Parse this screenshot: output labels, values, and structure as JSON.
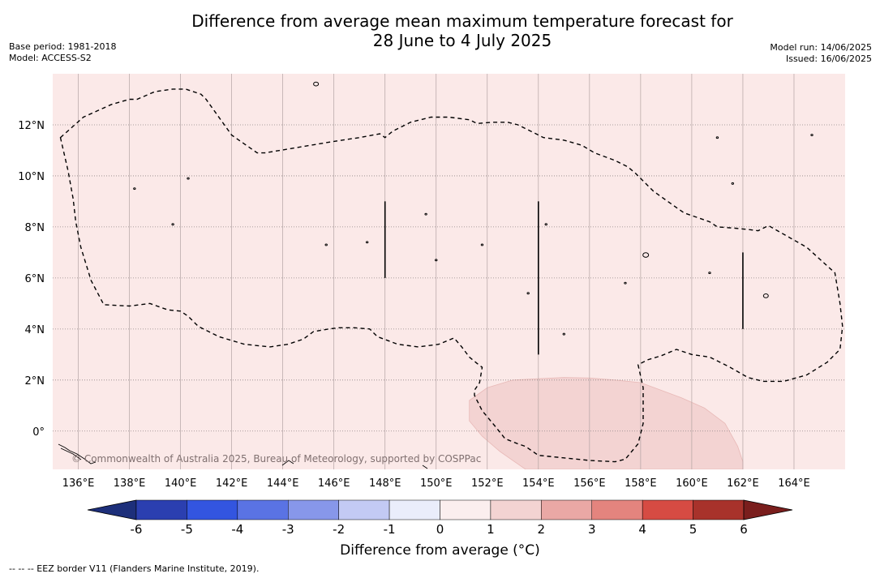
{
  "header": {
    "title_line1": "Difference from average mean maximum temperature forecast for",
    "title_line2": "28 June to 4 July 2025",
    "base_period": "Base period: 1981-2018",
    "model": "Model: ACCESS-S2",
    "model_run": "Model run: 14/06/2025",
    "issued": "Issued: 16/06/2025"
  },
  "map": {
    "lon_range": [
      135,
      166
    ],
    "lat_range": [
      -1.5,
      14
    ],
    "lon_ticks": [
      136,
      138,
      140,
      142,
      144,
      146,
      148,
      150,
      152,
      154,
      156,
      158,
      160,
      162,
      164
    ],
    "lon_labels": [
      "136°E",
      "138°E",
      "140°E",
      "142°E",
      "144°E",
      "146°E",
      "148°E",
      "150°E",
      "152°E",
      "154°E",
      "156°E",
      "158°E",
      "160°E",
      "162°E",
      "164°E"
    ],
    "lat_ticks": [
      0,
      2,
      4,
      6,
      8,
      10,
      12
    ],
    "lat_labels": [
      "0°",
      "2°N",
      "4°N",
      "6°N",
      "8°N",
      "10°N",
      "12°N"
    ],
    "background_color": "#fbe9e8",
    "anomaly_region_color": "#f3d3d2",
    "border_color": "#000000",
    "copyright": "© Commonwealth of Australia 2025, Bureau of Meteorology, supported by COSPPac",
    "eez_border": [
      [
        135.3,
        11.5
      ],
      [
        136.2,
        12.3
      ],
      [
        137.3,
        12.8
      ],
      [
        138.0,
        13.0
      ],
      [
        138.3,
        13.0
      ],
      [
        139.0,
        13.3
      ],
      [
        139.7,
        13.4
      ],
      [
        140.2,
        13.4
      ],
      [
        140.8,
        13.2
      ],
      [
        141.0,
        13.0
      ],
      [
        142.0,
        11.6
      ],
      [
        143.0,
        10.9
      ],
      [
        143.3,
        10.9
      ],
      [
        144.5,
        11.1
      ],
      [
        146.0,
        11.35
      ],
      [
        147.0,
        11.5
      ],
      [
        147.8,
        11.65
      ],
      [
        148.0,
        11.5
      ],
      [
        148.3,
        11.75
      ],
      [
        149.0,
        12.1
      ],
      [
        149.8,
        12.3
      ],
      [
        150.5,
        12.3
      ],
      [
        151.3,
        12.2
      ],
      [
        151.6,
        12.05
      ],
      [
        152.2,
        12.1
      ],
      [
        152.8,
        12.1
      ],
      [
        153.2,
        12.0
      ],
      [
        154.2,
        11.5
      ],
      [
        155.0,
        11.4
      ],
      [
        155.7,
        11.2
      ],
      [
        156.2,
        10.9
      ],
      [
        157.0,
        10.6
      ],
      [
        157.5,
        10.35
      ],
      [
        157.8,
        10.1
      ],
      [
        158.5,
        9.4
      ],
      [
        159.2,
        8.9
      ],
      [
        159.7,
        8.55
      ],
      [
        160.7,
        8.2
      ],
      [
        161.0,
        8.0
      ],
      [
        161.7,
        7.95
      ],
      [
        162.2,
        7.9
      ],
      [
        162.6,
        7.85
      ],
      [
        163.0,
        8.05
      ],
      [
        164.5,
        7.2
      ],
      [
        165.6,
        6.2
      ],
      [
        165.8,
        5.0
      ],
      [
        165.9,
        4.1
      ],
      [
        165.8,
        3.2
      ],
      [
        165.3,
        2.7
      ],
      [
        164.5,
        2.2
      ],
      [
        163.6,
        1.95
      ],
      [
        162.8,
        1.95
      ],
      [
        162.2,
        2.1
      ],
      [
        161.5,
        2.5
      ],
      [
        160.7,
        2.9
      ],
      [
        160.0,
        3.0
      ],
      [
        159.4,
        3.2
      ],
      [
        158.8,
        2.95
      ],
      [
        158.3,
        2.8
      ],
      [
        157.9,
        2.6
      ],
      [
        158.1,
        1.7
      ],
      [
        158.1,
        0.3
      ],
      [
        157.9,
        -0.5
      ],
      [
        157.4,
        -1.1
      ],
      [
        157.0,
        -1.2
      ],
      [
        156.0,
        -1.15
      ],
      [
        155.0,
        -1.05
      ],
      [
        154.0,
        -0.95
      ],
      [
        153.5,
        -0.6
      ],
      [
        153.2,
        -0.5
      ],
      [
        152.7,
        -0.3
      ],
      [
        152.3,
        0.2
      ],
      [
        151.8,
        0.8
      ],
      [
        151.5,
        1.4
      ],
      [
        151.5,
        1.6
      ],
      [
        151.7,
        1.9
      ],
      [
        151.8,
        2.5
      ],
      [
        151.6,
        2.65
      ],
      [
        151.3,
        2.9
      ],
      [
        151.0,
        3.3
      ],
      [
        150.7,
        3.65
      ],
      [
        150.1,
        3.4
      ],
      [
        149.3,
        3.3
      ],
      [
        148.5,
        3.4
      ],
      [
        147.7,
        3.7
      ],
      [
        147.4,
        4.0
      ],
      [
        146.8,
        4.05
      ],
      [
        146.2,
        4.05
      ],
      [
        145.8,
        4.0
      ],
      [
        145.2,
        3.9
      ],
      [
        144.8,
        3.6
      ],
      [
        144.2,
        3.4
      ],
      [
        143.5,
        3.3
      ],
      [
        142.5,
        3.4
      ],
      [
        141.5,
        3.7
      ],
      [
        140.7,
        4.1
      ],
      [
        140.3,
        4.5
      ],
      [
        140.0,
        4.7
      ],
      [
        139.5,
        4.75
      ],
      [
        138.8,
        5.0
      ],
      [
        138.0,
        4.9
      ],
      [
        137.0,
        4.95
      ],
      [
        136.5,
        5.9
      ],
      [
        136.1,
        7.2
      ],
      [
        135.9,
        8.2
      ],
      [
        135.8,
        9.1
      ],
      [
        135.6,
        10.2
      ],
      [
        135.3,
        11.5
      ]
    ],
    "anomaly_region": [
      [
        151.3,
        1.2
      ],
      [
        152.0,
        1.7
      ],
      [
        153.0,
        2.0
      ],
      [
        154.0,
        2.05
      ],
      [
        155.0,
        2.1
      ],
      [
        156.0,
        2.08
      ],
      [
        157.0,
        2.0
      ],
      [
        158.0,
        1.9
      ],
      [
        158.8,
        1.6
      ],
      [
        159.6,
        1.3
      ],
      [
        160.5,
        0.9
      ],
      [
        161.3,
        0.3
      ],
      [
        161.8,
        -0.6
      ],
      [
        162.0,
        -1.2
      ],
      [
        162.0,
        -1.5
      ],
      [
        153.5,
        -1.5
      ],
      [
        152.5,
        -0.8
      ],
      [
        151.8,
        -0.2
      ],
      [
        151.3,
        0.4
      ],
      [
        151.3,
        1.2
      ]
    ],
    "lines": [
      [
        [
          148.0,
          9.0
        ],
        [
          148.0,
          6.0
        ]
      ],
      [
        [
          154.0,
          9.0
        ],
        [
          154.0,
          3.0
        ]
      ],
      [
        [
          162.0,
          7.0
        ],
        [
          162.0,
          4.0
        ]
      ]
    ]
  },
  "legend": {
    "title": "Difference from average (°C)",
    "tick_labels": [
      "-6",
      "-5",
      "-4",
      "-3",
      "-2",
      "-1",
      "0",
      "1",
      "2",
      "3",
      "4",
      "5",
      "6"
    ],
    "colors": [
      "#1d2f7a",
      "#2b3fb0",
      "#3355e0",
      "#5a73e4",
      "#8797ea",
      "#c3caf4",
      "#eaedfb",
      "#fbeeee",
      "#f3d3d2",
      "#eaa8a5",
      "#e4847e",
      "#d64b43",
      "#a8322b",
      "#7a1e1d"
    ],
    "footer": "--  --  -- EEZ border V11 (Flanders Marine Institute, 2019)."
  }
}
